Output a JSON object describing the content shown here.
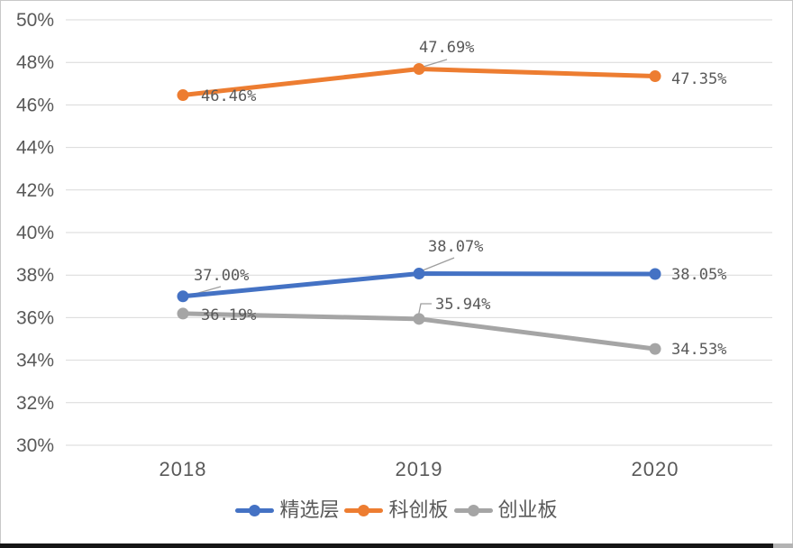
{
  "chart_data": {
    "type": "line",
    "title": "",
    "xlabel": "",
    "ylabel": "",
    "categories": [
      "2018",
      "2019",
      "2020"
    ],
    "series": [
      {
        "name": "精选层",
        "color": "#4472C4",
        "values": [
          37.0,
          38.07,
          38.05
        ],
        "data_labels": [
          "37.00%",
          "38.07%",
          "38.05%"
        ]
      },
      {
        "name": "科创板",
        "color": "#ED7D31",
        "values": [
          46.46,
          47.69,
          47.35
        ],
        "data_labels": [
          "46.46%",
          "47.69%",
          "47.35%"
        ]
      },
      {
        "name": "创业板",
        "color": "#A5A5A5",
        "values": [
          36.19,
          35.94,
          34.53
        ],
        "data_labels": [
          "36.19%",
          "35.94%",
          "34.53%"
        ]
      }
    ],
    "y_axis": {
      "min": 30,
      "max": 50,
      "step": 2,
      "tick_labels": [
        "50%",
        "48%",
        "46%",
        "44%",
        "42%",
        "40%",
        "38%",
        "36%",
        "34%",
        "32%",
        "30%"
      ]
    },
    "grid": "horizontal",
    "legend_position": "bottom",
    "colors": {
      "gridline": "#d9d9d9",
      "axis_text": "#595959",
      "data_label_text": "#595959",
      "leader_line": "#9e9e9e"
    }
  }
}
